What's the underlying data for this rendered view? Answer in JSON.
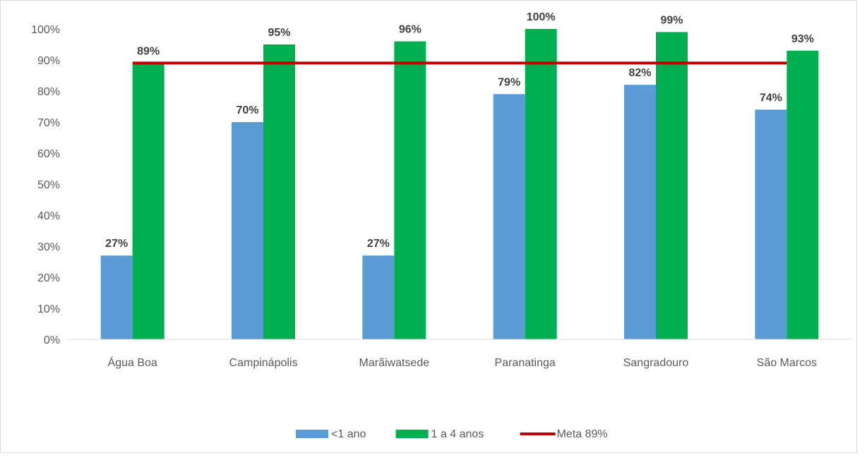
{
  "chart_data": {
    "type": "bar",
    "title": "",
    "xlabel": "",
    "ylabel": "",
    "ylim": [
      0,
      100
    ],
    "y_ticks": [
      "0%",
      "10%",
      "20%",
      "30%",
      "40%",
      "50%",
      "60%",
      "70%",
      "80%",
      "90%",
      "100%"
    ],
    "y_tick_values": [
      0,
      10,
      20,
      30,
      40,
      50,
      60,
      70,
      80,
      90,
      100
    ],
    "grid": false,
    "legend_position": "bottom",
    "categories": [
      "Água Boa",
      "Campinápolis",
      "Marãiwatsede",
      "Paranatinga",
      "Sangradouro",
      "São Marcos"
    ],
    "series": [
      {
        "name": "<1 ano",
        "type": "bar",
        "color": "#5b9bd5",
        "values": [
          27,
          70,
          27,
          79,
          82,
          74
        ],
        "labels": [
          "27%",
          "70%",
          "27%",
          "79%",
          "82%",
          "74%"
        ]
      },
      {
        "name": "1 a 4 anos",
        "type": "bar",
        "color": "#00b050",
        "values": [
          89,
          95,
          96,
          100,
          99,
          93
        ],
        "labels": [
          "89%",
          "95%",
          "96%",
          "100%",
          "99%",
          "93%"
        ]
      },
      {
        "name": "Meta  89%",
        "type": "line",
        "color": "#c00000",
        "values": [
          89,
          89,
          89,
          89,
          89,
          89
        ]
      }
    ]
  }
}
